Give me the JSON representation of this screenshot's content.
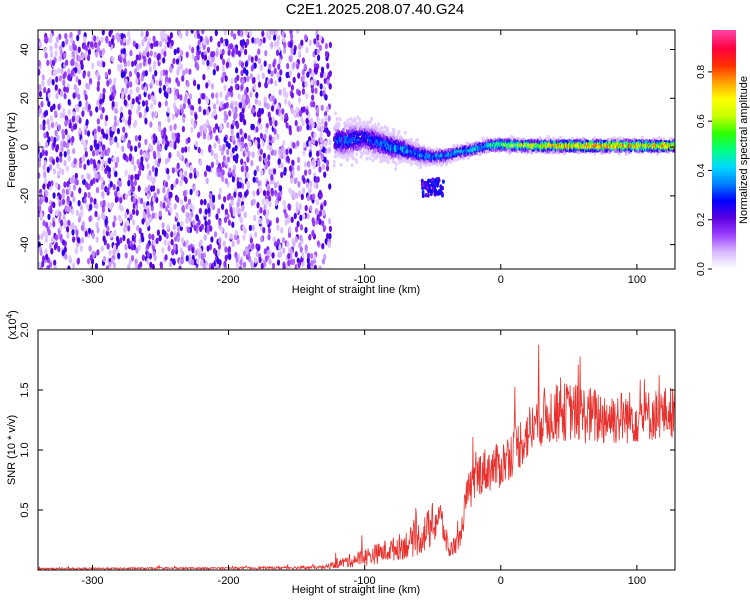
{
  "title": "C2E1.2025.208.07.40.G24",
  "chart_data": [
    {
      "type": "heatmap",
      "xlabel": "Height of straight line (km)",
      "ylabel": "Frequency (Hz)",
      "xlim": [
        -340,
        128
      ],
      "ylim": [
        -50,
        48
      ],
      "xticks": [
        -300,
        -200,
        -100,
        0,
        100
      ],
      "yticks": [
        -40,
        -20,
        0,
        20,
        40
      ],
      "grid": false,
      "colorbar": {
        "label": "Normalized spectral amplitude",
        "range": [
          0,
          0.97
        ],
        "ticks": [
          0.0,
          0.2,
          0.4,
          0.6,
          0.8
        ],
        "colormap": [
          "#ffffff",
          "#d8b8ff",
          "#9a40ff",
          "#5a00e0",
          "#0000ff",
          "#0080ff",
          "#00d8ff",
          "#00ff80",
          "#30ff00",
          "#c8ff00",
          "#ffff00",
          "#ffa000",
          "#ff3000",
          "#ff0040",
          "#ff40a0"
        ]
      },
      "noise_region": {
        "x_range": [
          -340,
          -125
        ],
        "freq_range": [
          -50,
          48
        ],
        "amplitude": [
          0.05,
          0.25
        ]
      },
      "signal_track": [
        {
          "x": -122,
          "freq": 2.5,
          "spread": 8,
          "peak": 0.35
        },
        {
          "x": -110,
          "freq": 3,
          "spread": 8,
          "peak": 0.4
        },
        {
          "x": -100,
          "freq": 4,
          "spread": 7,
          "peak": 0.35
        },
        {
          "x": -90,
          "freq": 2,
          "spread": 7,
          "peak": 0.4
        },
        {
          "x": -80,
          "freq": 0,
          "spread": 6,
          "peak": 0.45
        },
        {
          "x": -70,
          "freq": -1,
          "spread": 5,
          "peak": 0.45
        },
        {
          "x": -60,
          "freq": -3,
          "spread": 4,
          "peak": 0.45
        },
        {
          "x": -50,
          "freq": -4,
          "spread": 3,
          "peak": 0.45
        },
        {
          "x": -40,
          "freq": -3.5,
          "spread": 3,
          "peak": 0.45
        },
        {
          "x": -30,
          "freq": -2,
          "spread": 2.5,
          "peak": 0.5
        },
        {
          "x": -20,
          "freq": -1,
          "spread": 2.5,
          "peak": 0.5
        },
        {
          "x": -10,
          "freq": 0.5,
          "spread": 2.5,
          "peak": 0.55
        },
        {
          "x": 0,
          "freq": 1,
          "spread": 2.5,
          "peak": 0.7
        },
        {
          "x": 20,
          "freq": 0.5,
          "spread": 2.5,
          "peak": 0.8
        },
        {
          "x": 40,
          "freq": 0.5,
          "spread": 2.5,
          "peak": 0.9
        },
        {
          "x": 60,
          "freq": 0.5,
          "spread": 2.5,
          "peak": 0.95
        },
        {
          "x": 80,
          "freq": 0.5,
          "spread": 2.5,
          "peak": 0.95
        },
        {
          "x": 100,
          "freq": 0.5,
          "spread": 2.5,
          "peak": 0.95
        },
        {
          "x": 128,
          "freq": 0.5,
          "spread": 2.5,
          "peak": 0.9
        }
      ],
      "side_feature": {
        "x_range": [
          -58,
          -42
        ],
        "freq_range": [
          -20,
          -13
        ],
        "amplitude": 0.3
      }
    },
    {
      "type": "line",
      "xlabel": "Height of straight line (km)",
      "ylabel": "SNR (10 * v/v)",
      "yscale_label": "(x10",
      "yscale_exponent": "4",
      "xlim": [
        -340,
        128
      ],
      "ylim": [
        0,
        20000
      ],
      "xticks": [
        -300,
        -200,
        -100,
        0,
        100
      ],
      "yticks": [
        5000,
        10000,
        15000,
        20000
      ],
      "ytick_labels": [
        "0.5",
        "1.0",
        "1.5",
        "2.0"
      ],
      "series": [
        {
          "color": "#e8302c",
          "envelope": [
            {
              "x": -340,
              "mean": 100,
              "jitter": 120
            },
            {
              "x": -200,
              "mean": 150,
              "jitter": 150
            },
            {
              "x": -130,
              "mean": 200,
              "jitter": 250
            },
            {
              "x": -115,
              "mean": 600,
              "jitter": 900
            },
            {
              "x": -100,
              "mean": 1000,
              "jitter": 1400
            },
            {
              "x": -80,
              "mean": 1600,
              "jitter": 1800
            },
            {
              "x": -70,
              "mean": 2000,
              "jitter": 2200
            },
            {
              "x": -60,
              "mean": 2500,
              "jitter": 2600
            },
            {
              "x": -50,
              "mean": 3500,
              "jitter": 3500
            },
            {
              "x": -45,
              "mean": 4500,
              "jitter": 3000
            },
            {
              "x": -38,
              "mean": 1500,
              "jitter": 1500
            },
            {
              "x": -30,
              "mean": 2500,
              "jitter": 1500
            },
            {
              "x": -25,
              "mean": 6000,
              "jitter": 3000
            },
            {
              "x": -15,
              "mean": 8000,
              "jitter": 3500
            },
            {
              "x": 0,
              "mean": 8500,
              "jitter": 3500
            },
            {
              "x": 15,
              "mean": 10500,
              "jitter": 4000
            },
            {
              "x": 30,
              "mean": 12500,
              "jitter": 4500
            },
            {
              "x": 50,
              "mean": 13000,
              "jitter": 4500
            },
            {
              "x": 70,
              "mean": 12500,
              "jitter": 4500
            },
            {
              "x": 100,
              "mean": 12500,
              "jitter": 4000
            },
            {
              "x": 128,
              "mean": 13000,
              "jitter": 4000
            }
          ]
        }
      ]
    }
  ]
}
